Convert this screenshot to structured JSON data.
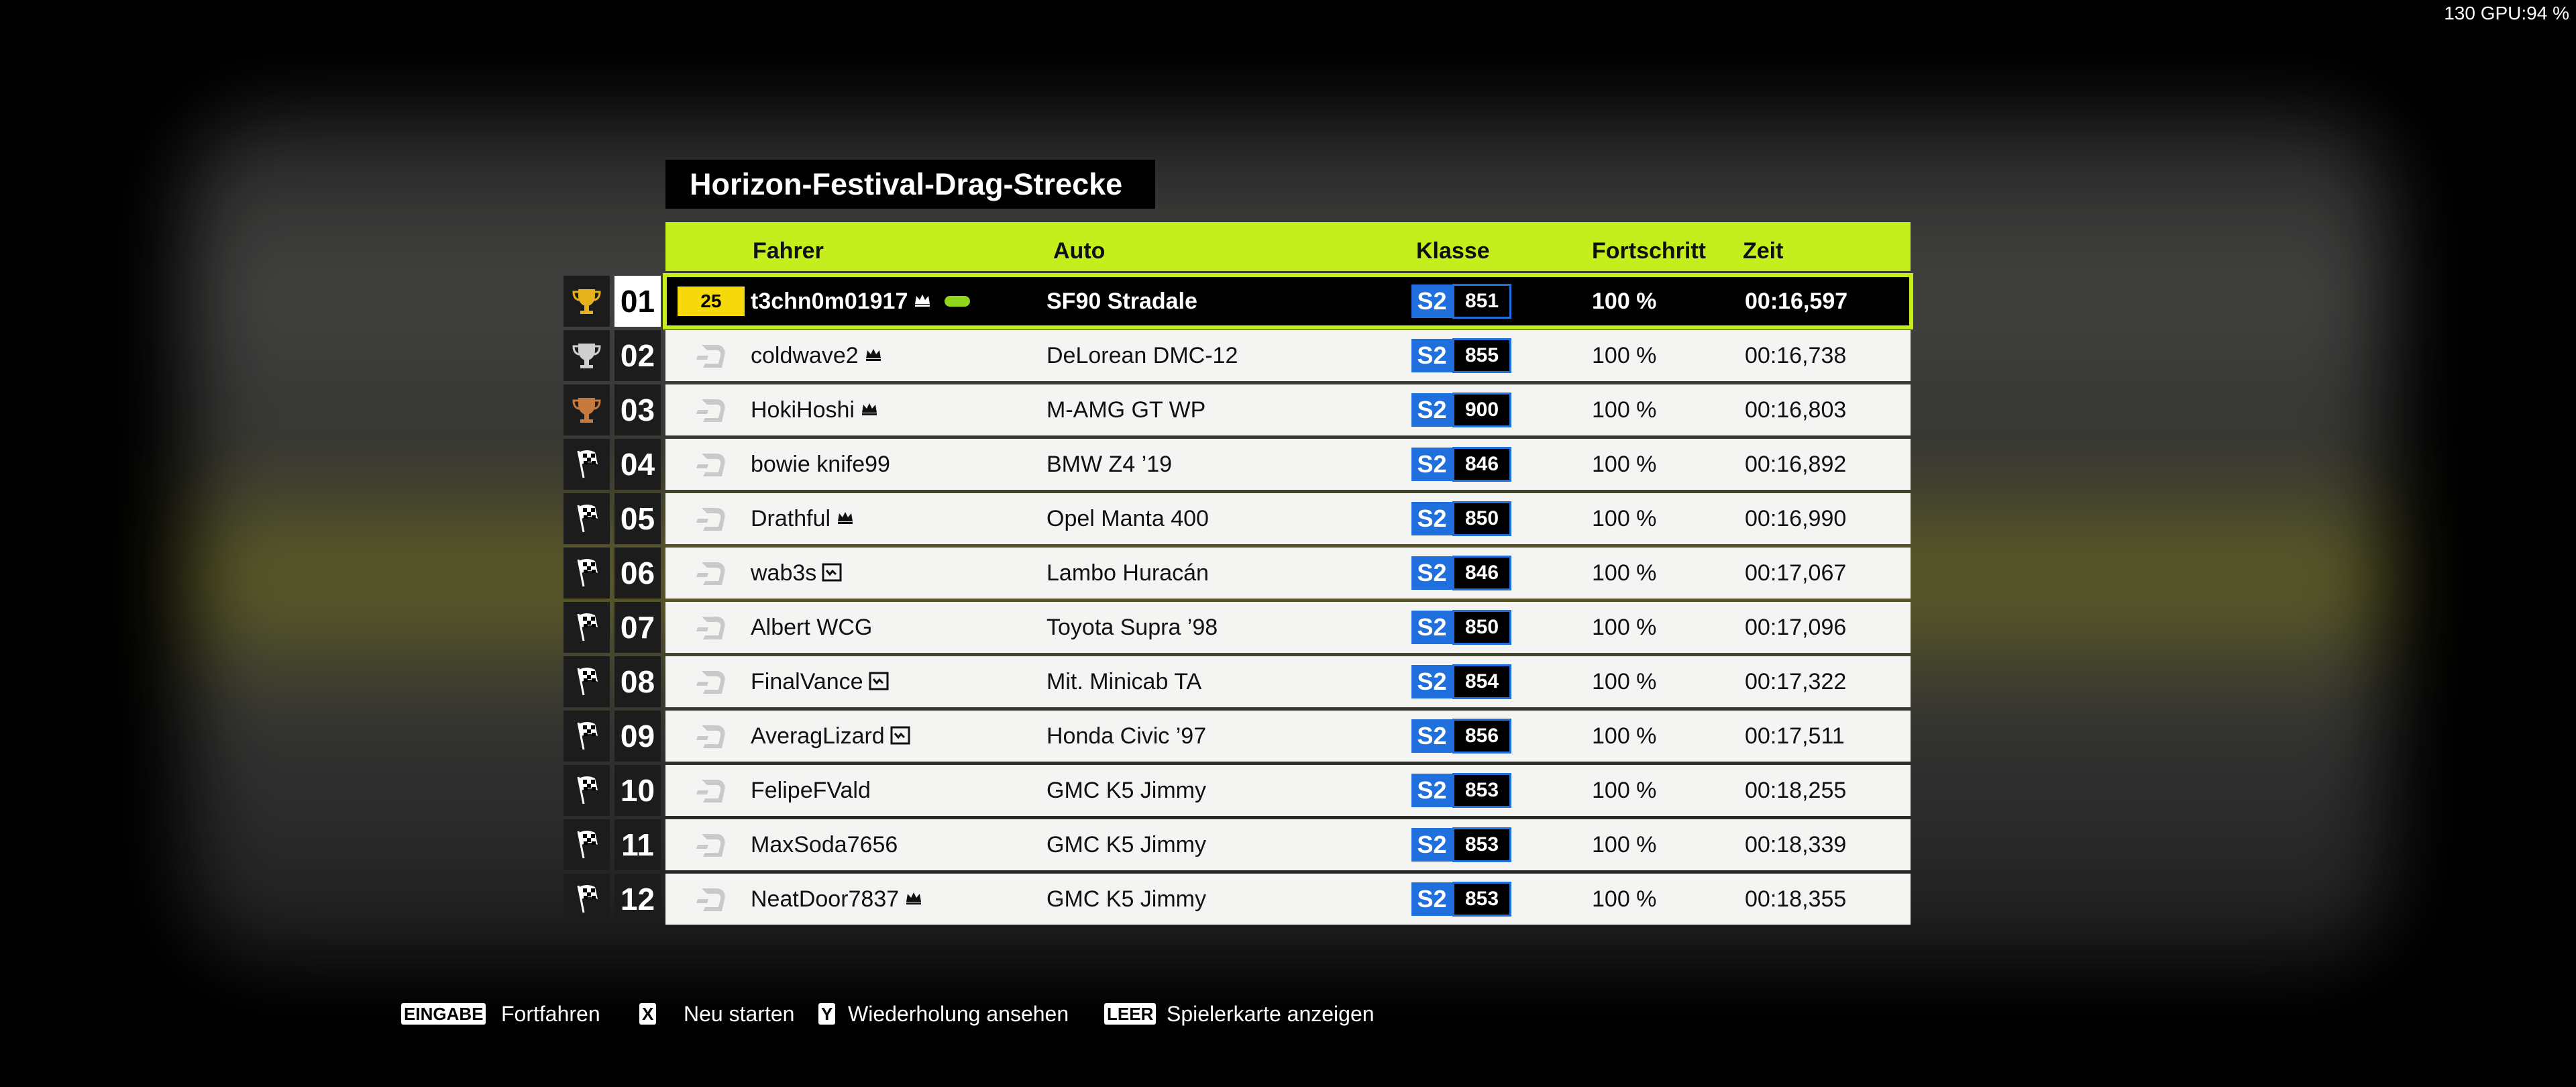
{
  "overlay": {
    "stats": "130 GPU:94 %"
  },
  "title": "Horizon-Festival-Drag-Strecke",
  "headers": {
    "driver": "Fahrer",
    "car": "Auto",
    "class": "Klasse",
    "progress": "Fortschritt",
    "time": "Zeit"
  },
  "rows": [
    {
      "position": "01",
      "level": "25",
      "driver": "t3chn0m01917",
      "badge": "crown",
      "car": "SF90 Stradale",
      "class": "S2",
      "pi": 851,
      "progress": "100 %",
      "time": "00:16,597"
    },
    {
      "position": "02",
      "driver": "coldwave2",
      "badge": "crown",
      "car": "DeLorean DMC-12",
      "class": "S2",
      "pi": 855,
      "progress": "100 %",
      "time": "00:16,738"
    },
    {
      "position": "03",
      "driver": "HokiHoshi",
      "badge": "crown",
      "car": "M-AMG GT WP",
      "class": "S2",
      "pi": 900,
      "progress": "100 %",
      "time": "00:16,803"
    },
    {
      "position": "04",
      "driver": "bowie knife99",
      "badge": null,
      "car": "BMW Z4 ’19",
      "class": "S2",
      "pi": 846,
      "progress": "100 %",
      "time": "00:16,892"
    },
    {
      "position": "05",
      "driver": "Drathful",
      "badge": "crown",
      "car": "Opel Manta 400",
      "class": "S2",
      "pi": 850,
      "progress": "100 %",
      "time": "00:16,990"
    },
    {
      "position": "06",
      "driver": "wab3s",
      "badge": "card",
      "car": "Lambo Huracán",
      "class": "S2",
      "pi": 846,
      "progress": "100 %",
      "time": "00:17,067"
    },
    {
      "position": "07",
      "driver": "Albert WCG",
      "badge": null,
      "car": "Toyota Supra ’98",
      "class": "S2",
      "pi": 850,
      "progress": "100 %",
      "time": "00:17,096"
    },
    {
      "position": "08",
      "driver": "FinalVance",
      "badge": "card",
      "car": "Mit. Minicab TA",
      "class": "S2",
      "pi": 854,
      "progress": "100 %",
      "time": "00:17,322"
    },
    {
      "position": "09",
      "driver": "AveragLizard",
      "badge": "card",
      "car": "Honda Civic ’97",
      "class": "S2",
      "pi": 856,
      "progress": "100 %",
      "time": "00:17,511"
    },
    {
      "position": "10",
      "driver": "FelipeFVald",
      "badge": null,
      "car": "GMC K5 Jimmy",
      "class": "S2",
      "pi": 853,
      "progress": "100 %",
      "time": "00:18,255"
    },
    {
      "position": "11",
      "driver": "MaxSoda7656",
      "badge": null,
      "car": "GMC K5 Jimmy",
      "class": "S2",
      "pi": 853,
      "progress": "100 %",
      "time": "00:18,339"
    },
    {
      "position": "12",
      "driver": "NeatDoor7837",
      "badge": "crown",
      "car": "GMC K5 Jimmy",
      "class": "S2",
      "pi": 853,
      "progress": "100 %",
      "time": "00:18,355"
    }
  ],
  "footer": [
    {
      "key": "EINGABE",
      "label": "Fortfahren"
    },
    {
      "key": "X",
      "label": "Neu starten"
    },
    {
      "key": "Y",
      "label": "Wiederholung ansehen"
    },
    {
      "key": "LEER",
      "label": "Spielerkarte anzeigen"
    }
  ]
}
